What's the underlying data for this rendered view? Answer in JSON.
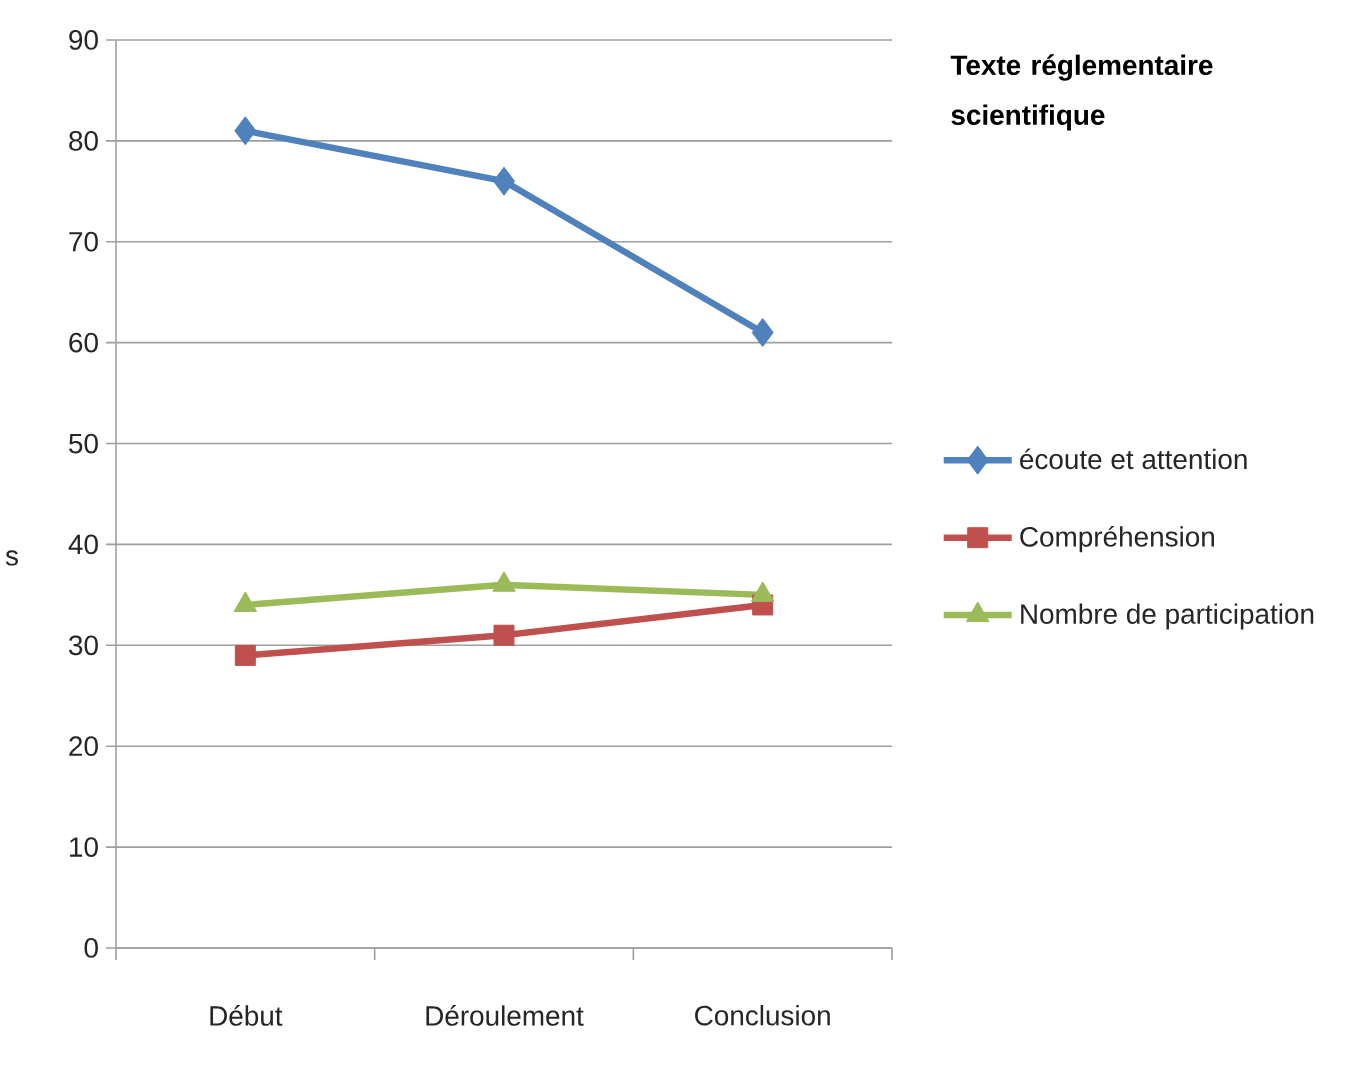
{
  "chart_data": {
    "type": "line",
    "title": "Texte réglementaire scientifique",
    "ylabel": "s",
    "categories": [
      "Début",
      "Déroulement",
      "Conclusion"
    ],
    "series": [
      {
        "name": "écoute et attention",
        "color": "#4f81bd",
        "marker": "diamond",
        "values": [
          81,
          76,
          61
        ]
      },
      {
        "name": "Compréhension",
        "color": "#c0504d",
        "marker": "square",
        "values": [
          29,
          31,
          34
        ]
      },
      {
        "name": "Nombre de participation",
        "color": "#9bbb59",
        "marker": "triangle",
        "values": [
          34,
          36,
          35
        ]
      }
    ],
    "ylim": [
      0,
      90
    ],
    "yticks": [
      0,
      10,
      20,
      30,
      40,
      50,
      60,
      70,
      80,
      90
    ],
    "grid": "y",
    "legend": "right",
    "line_style": "solid"
  }
}
